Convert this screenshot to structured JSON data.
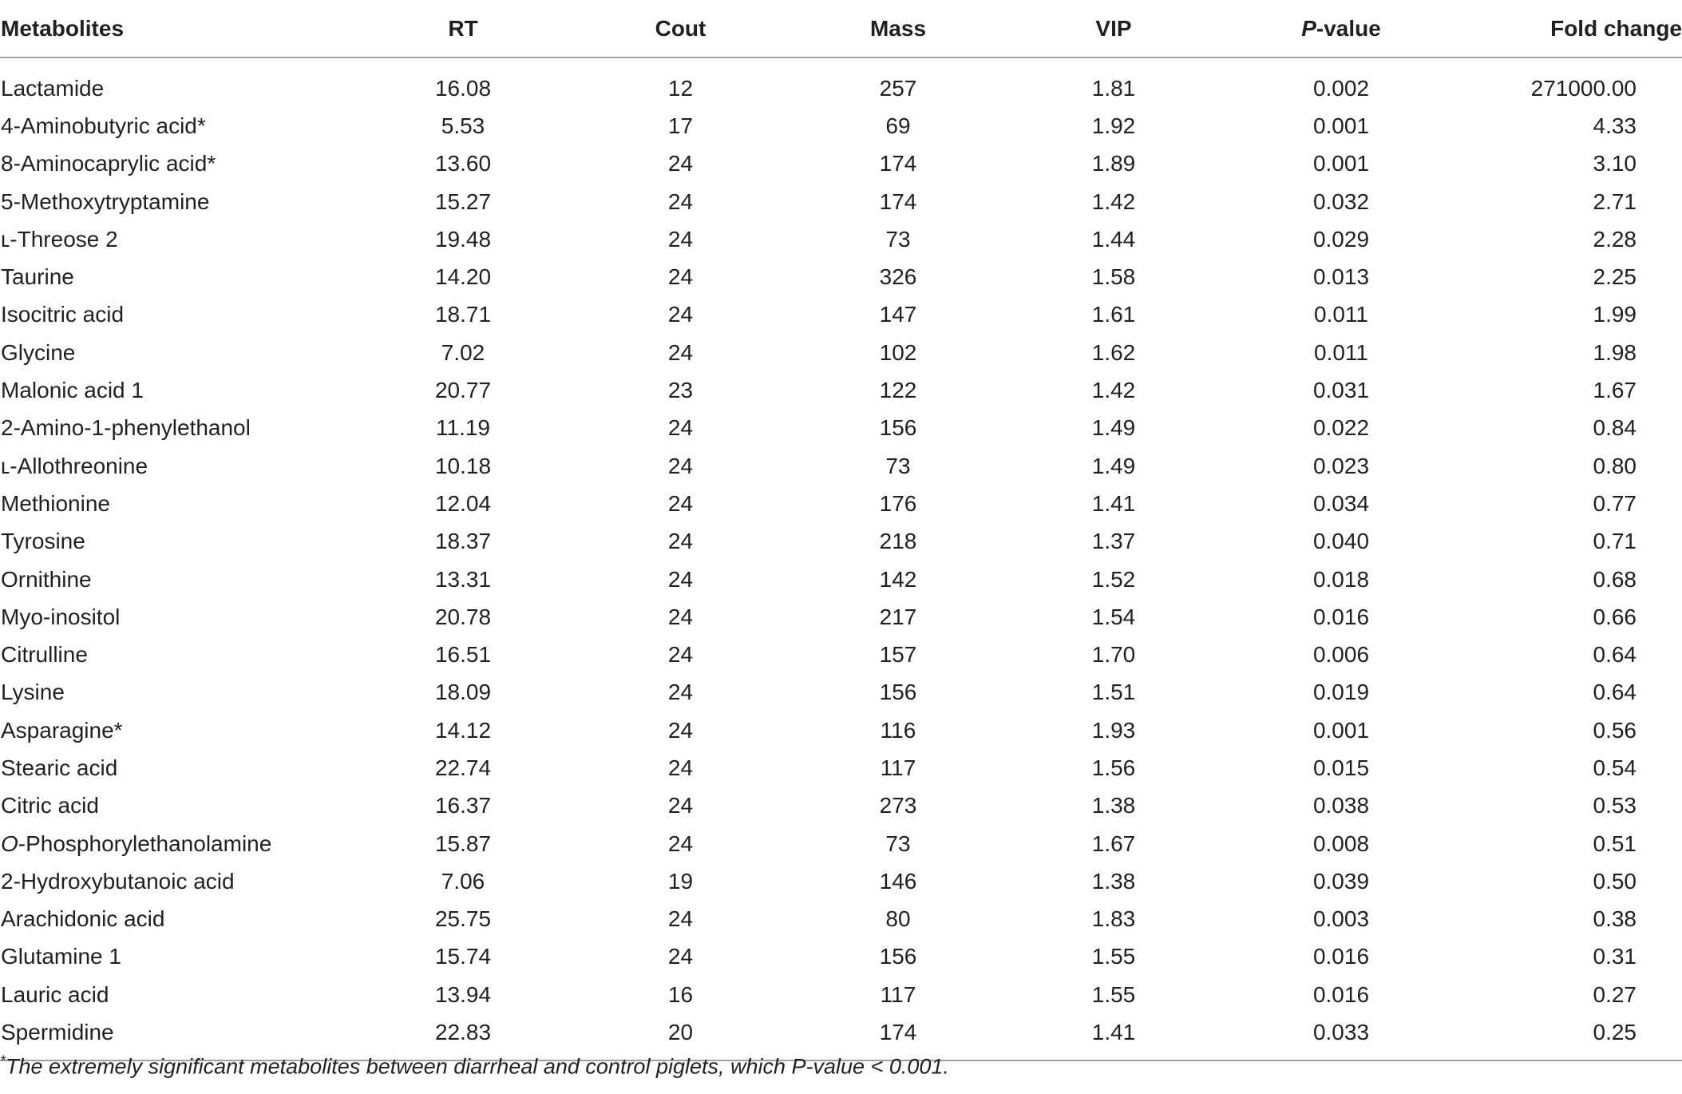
{
  "table": {
    "headers": {
      "metabolites": "Metabolites",
      "rt": "RT",
      "cout": "Cout",
      "mass": "Mass",
      "vip": "VIP",
      "p_italic": "P",
      "p_rest": "-value",
      "fold": "Fold change"
    },
    "rows": [
      {
        "name": "Lactamide",
        "rt": "16.08",
        "cout": "12",
        "mass": "257",
        "vip": "1.81",
        "p": "0.002",
        "fold": "271000.00"
      },
      {
        "name": "4-Aminobutyric acid*",
        "rt": "5.53",
        "cout": "17",
        "mass": "69",
        "vip": "1.92",
        "p": "0.001",
        "fold": "4.33"
      },
      {
        "name": "8-Aminocaprylic acid*",
        "rt": "13.60",
        "cout": "24",
        "mass": "174",
        "vip": "1.89",
        "p": "0.001",
        "fold": "3.10"
      },
      {
        "name": "5-Methoxytryptamine",
        "rt": "15.27",
        "cout": "24",
        "mass": "174",
        "vip": "1.42",
        "p": "0.032",
        "fold": "2.71"
      },
      {
        "name": "ʟ-Threose 2",
        "rt": "19.48",
        "cout": "24",
        "mass": "73",
        "vip": "1.44",
        "p": "0.029",
        "fold": "2.28"
      },
      {
        "name": "Taurine",
        "rt": "14.20",
        "cout": "24",
        "mass": "326",
        "vip": "1.58",
        "p": "0.013",
        "fold": "2.25"
      },
      {
        "name": "Isocitric acid",
        "rt": "18.71",
        "cout": "24",
        "mass": "147",
        "vip": "1.61",
        "p": "0.011",
        "fold": "1.99"
      },
      {
        "name": "Glycine",
        "rt": "7.02",
        "cout": "24",
        "mass": "102",
        "vip": "1.62",
        "p": "0.011",
        "fold": "1.98"
      },
      {
        "name": "Malonic acid 1",
        "rt": "20.77",
        "cout": "23",
        "mass": "122",
        "vip": "1.42",
        "p": "0.031",
        "fold": "1.67"
      },
      {
        "name": "2-Amino-1-phenylethanol",
        "rt": "11.19",
        "cout": "24",
        "mass": "156",
        "vip": "1.49",
        "p": "0.022",
        "fold": "0.84"
      },
      {
        "name": "ʟ-Allothreonine",
        "rt": "10.18",
        "cout": "24",
        "mass": "73",
        "vip": "1.49",
        "p": "0.023",
        "fold": "0.80"
      },
      {
        "name": "Methionine",
        "rt": "12.04",
        "cout": "24",
        "mass": "176",
        "vip": "1.41",
        "p": "0.034",
        "fold": "0.77"
      },
      {
        "name": "Tyrosine",
        "rt": "18.37",
        "cout": "24",
        "mass": "218",
        "vip": "1.37",
        "p": "0.040",
        "fold": "0.71"
      },
      {
        "name": "Ornithine",
        "rt": "13.31",
        "cout": "24",
        "mass": "142",
        "vip": "1.52",
        "p": "0.018",
        "fold": "0.68"
      },
      {
        "name": "Myo-inositol",
        "rt": "20.78",
        "cout": "24",
        "mass": "217",
        "vip": "1.54",
        "p": "0.016",
        "fold": "0.66"
      },
      {
        "name": "Citrulline",
        "rt": "16.51",
        "cout": "24",
        "mass": "157",
        "vip": "1.70",
        "p": "0.006",
        "fold": "0.64"
      },
      {
        "name": "Lysine",
        "rt": "18.09",
        "cout": "24",
        "mass": "156",
        "vip": "1.51",
        "p": "0.019",
        "fold": "0.64"
      },
      {
        "name": "Asparagine*",
        "rt": "14.12",
        "cout": "24",
        "mass": "116",
        "vip": "1.93",
        "p": "0.001",
        "fold": "0.56"
      },
      {
        "name": "Stearic acid",
        "rt": "22.74",
        "cout": "24",
        "mass": "117",
        "vip": "1.56",
        "p": "0.015",
        "fold": "0.54"
      },
      {
        "name": "Citric acid",
        "rt": "16.37",
        "cout": "24",
        "mass": "273",
        "vip": "1.38",
        "p": "0.038",
        "fold": "0.53"
      },
      {
        "name": "O-Phosphorylethanolamine",
        "name_italic_prefix": "O",
        "name_rest": "-Phosphorylethanolamine",
        "rt": "15.87",
        "cout": "24",
        "mass": "73",
        "vip": "1.67",
        "p": "0.008",
        "fold": "0.51"
      },
      {
        "name": "2-Hydroxybutanoic acid",
        "rt": "7.06",
        "cout": "19",
        "mass": "146",
        "vip": "1.38",
        "p": "0.039",
        "fold": "0.50"
      },
      {
        "name": "Arachidonic acid",
        "rt": "25.75",
        "cout": "24",
        "mass": "80",
        "vip": "1.83",
        "p": "0.003",
        "fold": "0.38"
      },
      {
        "name": "Glutamine 1",
        "rt": "15.74",
        "cout": "24",
        "mass": "156",
        "vip": "1.55",
        "p": "0.016",
        "fold": "0.31"
      },
      {
        "name": "Lauric acid",
        "rt": "13.94",
        "cout": "16",
        "mass": "117",
        "vip": "1.55",
        "p": "0.016",
        "fold": "0.27"
      },
      {
        "name": "Spermidine",
        "rt": "22.83",
        "cout": "20",
        "mass": "174",
        "vip": "1.41",
        "p": "0.033",
        "fold": "0.25"
      }
    ]
  },
  "footnote": {
    "marker": "*",
    "text": "The extremely significant metabolites between diarrheal and control piglets, which P-value < 0.001."
  }
}
